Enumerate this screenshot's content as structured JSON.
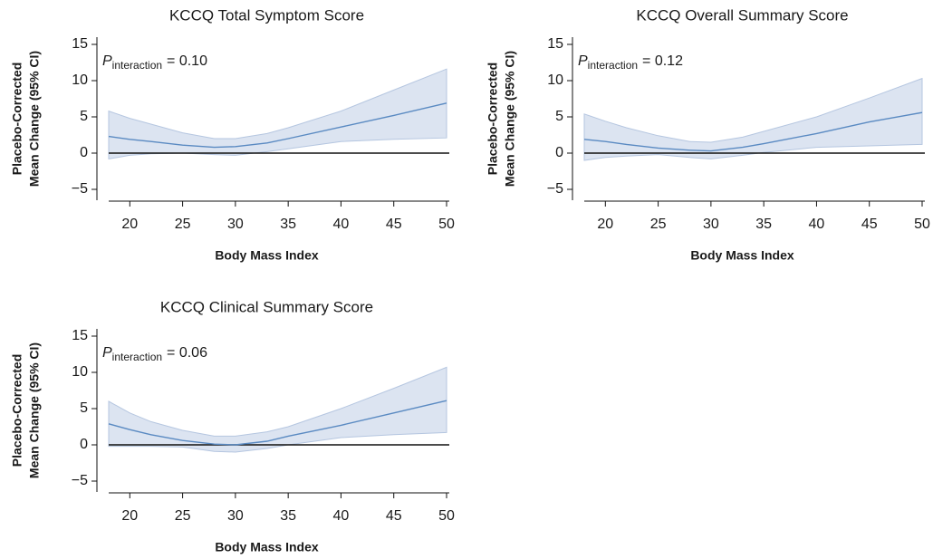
{
  "chart_data": [
    {
      "type": "line",
      "title": "KCCQ Total Symptom Score",
      "xlabel": "Body Mass Index",
      "ylabel": [
        "Placebo-Corrected",
        "Mean Change (95% CI)"
      ],
      "annotation": {
        "symbol": "P",
        "subscript": "interaction",
        "text": "= 0.10"
      },
      "x": [
        18,
        20,
        22,
        25,
        28,
        30,
        33,
        35,
        40,
        45,
        50
      ],
      "values": [
        2.3,
        1.9,
        1.6,
        1.1,
        0.8,
        0.9,
        1.4,
        2.0,
        3.6,
        5.2,
        6.9
      ],
      "upper": [
        5.8,
        4.8,
        4.0,
        2.8,
        2.0,
        2.0,
        2.7,
        3.5,
        5.8,
        8.7,
        11.6
      ],
      "lower": [
        -0.8,
        -0.3,
        -0.1,
        0,
        -0.2,
        -0.3,
        0.2,
        0.6,
        1.6,
        1.9,
        2.1
      ],
      "color": "#5a8ac2",
      "band_color": "#dce4f1",
      "reference_line": 0,
      "xlim": [
        18,
        50
      ],
      "xticks": [
        20,
        25,
        30,
        35,
        40,
        45,
        50
      ],
      "ylim": [
        -6.5,
        16
      ],
      "yticks": [
        {
          "value": -5,
          "label": "−5"
        },
        0,
        5,
        10,
        15
      ]
    },
    {
      "type": "line",
      "title": "KCCQ Overall Summary Score",
      "xlabel": "Body Mass Index",
      "ylabel": [
        "Placebo-Corrected",
        "Mean Change (95% CI)"
      ],
      "annotation": {
        "symbol": "P",
        "subscript": "interaction",
        "text": "= 0.12"
      },
      "x": [
        18,
        20,
        22,
        25,
        28,
        30,
        33,
        35,
        40,
        45,
        50
      ],
      "values": [
        1.9,
        1.6,
        1.2,
        0.7,
        0.4,
        0.3,
        0.8,
        1.3,
        2.7,
        4.3,
        5.6
      ],
      "upper": [
        5.4,
        4.4,
        3.5,
        2.4,
        1.6,
        1.5,
        2.2,
        3.0,
        5.0,
        7.6,
        10.3
      ],
      "lower": [
        -1.0,
        -0.6,
        -0.4,
        -0.2,
        -0.6,
        -0.8,
        -0.3,
        0.1,
        0.8,
        1.0,
        1.2
      ],
      "color": "#5a8ac2",
      "band_color": "#dce4f1",
      "reference_line": 0,
      "xlim": [
        18,
        50
      ],
      "xticks": [
        20,
        25,
        30,
        35,
        40,
        45,
        50
      ],
      "ylim": [
        -6.5,
        16
      ],
      "yticks": [
        {
          "value": -5,
          "label": "−5"
        },
        0,
        5,
        10,
        15
      ]
    },
    {
      "type": "line",
      "title": "KCCQ Clinical Summary Score",
      "xlabel": "Body Mass Index",
      "ylabel": [
        "Placebo-Corrected",
        "Mean Change (95% CI)"
      ],
      "annotation": {
        "symbol": "P",
        "subscript": "interaction",
        "text": "= 0.06"
      },
      "x": [
        18,
        20,
        22,
        25,
        28,
        30,
        33,
        35,
        40,
        45,
        50
      ],
      "values": [
        2.9,
        2.1,
        1.4,
        0.6,
        0.1,
        0,
        0.5,
        1.2,
        2.7,
        4.4,
        6.1
      ],
      "upper": [
        6.0,
        4.4,
        3.2,
        2.0,
        1.2,
        1.2,
        1.8,
        2.5,
        5.0,
        7.8,
        10.7
      ],
      "lower": [
        -0.2,
        -0.2,
        -0.2,
        -0.3,
        -0.9,
        -1.0,
        -0.5,
        0,
        1.0,
        1.4,
        1.7
      ],
      "color": "#5a8ac2",
      "band_color": "#dce4f1",
      "reference_line": 0,
      "xlim": [
        18,
        50
      ],
      "xticks": [
        20,
        25,
        30,
        35,
        40,
        45,
        50
      ],
      "ylim": [
        -6.5,
        16
      ],
      "yticks": [
        {
          "value": -5,
          "label": "−5"
        },
        0,
        5,
        10,
        15
      ]
    }
  ]
}
